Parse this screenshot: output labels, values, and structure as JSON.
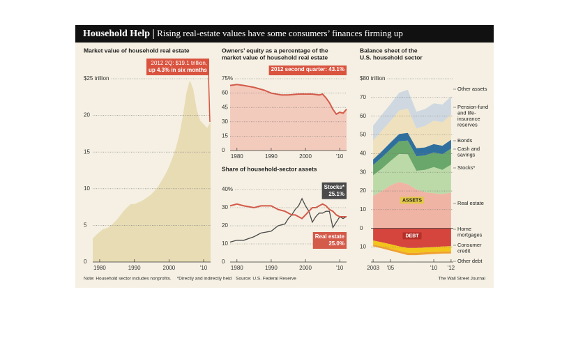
{
  "header": {
    "title": "Household Help",
    "subtitle": "Rising real-estate values have some consumers’ finances firming up"
  },
  "chart_data": [
    {
      "type": "area",
      "title": "Market value of household real estate",
      "annotation": [
        "2012 2Q: $19.1 trillion,",
        "up 4.3% in six months"
      ],
      "x": [
        1978,
        1979,
        1980,
        1981,
        1982,
        1983,
        1984,
        1985,
        1986,
        1987,
        1988,
        1989,
        1990,
        1991,
        1992,
        1993,
        1994,
        1995,
        1996,
        1997,
        1998,
        1999,
        2000,
        2001,
        2002,
        2003,
        2004,
        2005,
        2006,
        2007,
        2008,
        2009,
        2010,
        2011,
        2012
      ],
      "values": [
        3.2,
        3.7,
        4.1,
        4.5,
        4.6,
        4.9,
        5.3,
        5.8,
        6.4,
        7.0,
        7.5,
        7.9,
        7.9,
        8.1,
        8.3,
        8.6,
        8.9,
        9.3,
        9.8,
        10.4,
        11.2,
        12.0,
        13.0,
        14.2,
        15.6,
        17.4,
        19.9,
        23.0,
        24.8,
        23.6,
        20.8,
        19.3,
        18.8,
        18.3,
        19.1
      ],
      "color": "#e8dcb5",
      "annotation_color": "#d9533f",
      "xlim": [
        1978,
        2012
      ],
      "ylim": [
        0,
        25
      ],
      "yticks": [
        0,
        5,
        10,
        15,
        20,
        {
          "value": 25,
          "label": "$25 trillion"
        }
      ],
      "xticks": [
        1980,
        1990,
        2000,
        {
          "value": 2010,
          "label": "'10"
        }
      ],
      "grid": true
    },
    {
      "type": "line-area",
      "title": [
        "Owners’ equity as a percentage of the",
        "market value of household real estate"
      ],
      "annotation": "2012 second quarter: 43.1%",
      "x": [
        1978,
        1980,
        1982,
        1985,
        1988,
        1990,
        1993,
        1995,
        1998,
        2000,
        2002,
        2004,
        2005,
        2006,
        2007,
        2008,
        2009,
        2010,
        2011,
        2012
      ],
      "values": [
        68,
        69,
        68,
        66,
        63,
        60,
        58,
        58,
        59,
        59,
        59,
        58,
        59,
        55,
        50,
        43,
        38,
        40,
        39,
        43.1
      ],
      "color": "#d45a4a",
      "fill": "#f3cbbd",
      "annotation_color": "#d9533f",
      "xlim": [
        1978,
        2012
      ],
      "ylim": [
        0,
        75
      ],
      "yticks": [
        0,
        15,
        30,
        45,
        60,
        {
          "value": 75,
          "label": "75%"
        }
      ],
      "xticks": [
        1980,
        1990,
        2000,
        {
          "value": 2010,
          "label": "'10"
        }
      ],
      "grid": true
    },
    {
      "type": "line",
      "title": "Share of household-sector assets",
      "x": [
        1978,
        1980,
        1982,
        1985,
        1987,
        1990,
        1992,
        1994,
        1995,
        1996,
        1997,
        1998,
        1999,
        2000,
        2001,
        2002,
        2003,
        2004,
        2005,
        2006,
        2007,
        2008,
        2009,
        2010,
        2011,
        2012
      ],
      "series": [
        {
          "name": "Stocks*",
          "color": "#4a4a4a",
          "values": [
            11,
            12,
            12,
            14,
            16,
            17,
            20,
            21,
            24,
            26,
            29,
            31,
            35,
            31,
            28,
            22,
            25,
            27,
            27,
            28,
            28,
            19,
            22,
            25,
            24,
            25.1
          ],
          "value_labels": [
            null,
            null,
            null,
            null,
            null,
            null,
            null,
            null,
            null,
            null,
            null,
            null,
            null,
            null,
            null,
            null,
            null,
            null,
            null,
            null,
            null,
            null,
            null,
            null,
            null,
            "25.1%"
          ]
        },
        {
          "name": "Real estate",
          "color": "#d45a4a",
          "values": [
            31,
            32,
            31,
            30,
            31,
            31,
            29,
            28,
            27,
            26,
            26,
            25,
            24,
            26,
            28,
            30,
            30,
            31,
            32,
            31,
            29,
            28,
            26,
            25,
            25,
            25.0
          ],
          "value_labels": [
            null,
            null,
            null,
            null,
            null,
            null,
            null,
            null,
            null,
            null,
            null,
            null,
            null,
            null,
            null,
            null,
            null,
            null,
            null,
            null,
            null,
            null,
            null,
            null,
            null,
            "25.0%"
          ]
        }
      ],
      "xlim": [
        1978,
        2012
      ],
      "ylim": [
        0,
        40
      ],
      "yticks": [
        0,
        10,
        20,
        30,
        {
          "value": 40,
          "label": "40%"
        }
      ],
      "xticks": [
        1980,
        1990,
        2000,
        {
          "value": 2010,
          "label": "'10"
        }
      ],
      "grid": true
    },
    {
      "type": "stacked-area",
      "title": [
        "Balance sheet of the",
        "U.S. household sector"
      ],
      "x": [
        2003,
        2004,
        2005,
        2006,
        2007,
        2008,
        2009,
        2010,
        2011,
        2012
      ],
      "series": [
        {
          "name": "Real estate",
          "color": "#f0b4a4",
          "values": [
            17.4,
            19.9,
            23.0,
            24.8,
            23.6,
            20.8,
            19.3,
            18.8,
            18.3,
            19.1
          ]
        },
        {
          "name": "Stocks*",
          "color": "#bcdaa8",
          "values": [
            11,
            12,
            13,
            15,
            16,
            10,
            12,
            14,
            13,
            15
          ]
        },
        {
          "name": "Cash and savings",
          "color": "#6aa76a",
          "values": [
            5.5,
            6,
            6.3,
            6.8,
            7.3,
            7.8,
            7.7,
            7.8,
            8.3,
            8.6
          ]
        },
        {
          "name": "Bonds",
          "color": "#2f6f9e",
          "values": [
            3,
            3.3,
            3.6,
            3.9,
            4.2,
            4.3,
            4.3,
            4.5,
            4.6,
            4.7
          ]
        },
        {
          "name": "Pension-fund and life-insurance reserves",
          "color": "#efe1bd",
          "values": [
            10,
            11,
            11.5,
            12.5,
            13,
            10.5,
            11.5,
            12.5,
            12.5,
            13.5
          ]
        },
        {
          "name": "Other assets",
          "color": "#cfd8e0",
          "values": [
            8,
            8.5,
            9,
            9.5,
            10,
            9,
            9,
            9.3,
            9.5,
            9.7
          ]
        }
      ],
      "debt_series": [
        {
          "name": "Home mortgages",
          "color": "#d6453d",
          "values": [
            6.5,
            7.5,
            8.5,
            9.6,
            10.5,
            10.5,
            10.3,
            10,
            9.7,
            9.5
          ]
        },
        {
          "name": "Consumer credit",
          "color": "#f3c51a",
          "values": [
            2.1,
            2.2,
            2.3,
            2.4,
            2.6,
            2.6,
            2.5,
            2.6,
            2.7,
            2.8
          ]
        },
        {
          "name": "Other debt",
          "color": "#f0a030",
          "values": [
            1.0,
            1.0,
            1.1,
            1.1,
            1.2,
            1.2,
            1.2,
            1.1,
            1.1,
            1.1
          ]
        }
      ],
      "assets_label": "ASSETS",
      "debt_label": "DEBT",
      "xlim": [
        2002.75,
        2012.25
      ],
      "ylim": [
        -18,
        80
      ],
      "yticks": [
        {
          "value": -10,
          "label": "10"
        },
        0,
        10,
        20,
        30,
        40,
        50,
        60,
        70,
        {
          "value": 80,
          "label": "$80 trillion"
        }
      ],
      "xticks": [
        2003,
        {
          "value": 2005,
          "label": "'05"
        },
        {
          "value": 2010,
          "label": "'10"
        },
        {
          "value": 2012,
          "label": "'12"
        }
      ],
      "grid": true
    }
  ],
  "footer": {
    "note": "Note: Household sector includes nonprofits.",
    "footnote": "*Directly and indirectly held",
    "source": "Source: U.S. Federal Reserve",
    "credit": "The Wall Street Journal"
  }
}
